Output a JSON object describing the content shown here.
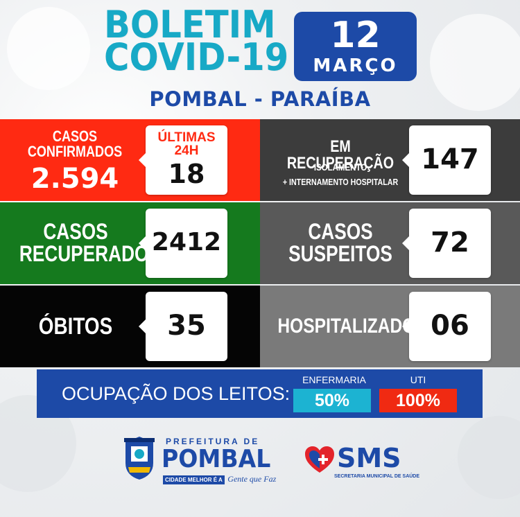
{
  "header": {
    "title_line1": "BOLETIM",
    "title_line2": "COVID-19",
    "day": "12",
    "month": "MARÇO",
    "location": "POMBAL - PARAÍBA"
  },
  "cards": {
    "confirmed": {
      "label_line1": "CASOS",
      "label_line2": "CONFIRMADOS",
      "value": "2.594",
      "last24_label1": "ÚLTIMAS",
      "last24_label2": "24H",
      "last24_value": "18"
    },
    "recovering": {
      "label": "EM RECUPERAÇÃO",
      "sub1": "ISOLAMENTO",
      "sub2": "+ INTERNAMENTO HOSPITALAR",
      "value": "147"
    },
    "recovered": {
      "label_line1": "CASOS",
      "label_line2": "RECUPERADOS",
      "value": "2412"
    },
    "suspected": {
      "label_line1": "CASOS",
      "label_line2": "SUSPEITOS",
      "value": "72"
    },
    "deaths": {
      "label": "ÓBITOS",
      "value": "35"
    },
    "hospitalized": {
      "label": "HOSPITALIZADOS",
      "value": "06"
    }
  },
  "beds": {
    "label": "OCUPAÇÃO DOS LEITOS:",
    "ward_label": "ENFERMARIA",
    "ward_value": "50%",
    "icu_label": "UTI",
    "icu_value": "100%"
  },
  "footer": {
    "pombal_top": "PREFEITURA DE",
    "pombal_name": "POMBAL",
    "pombal_slogan_a": "CIDADE MELHOR É A",
    "pombal_slogan_b": "Gente que Faz",
    "sms_name": "SMS",
    "sms_sub": "SECRETARIA MUNICIPAL DE SAÚDE"
  },
  "colors": {
    "teal": "#17a9c6",
    "navy": "#1d4aa7",
    "red": "#ff2a12",
    "green": "#157a1e",
    "black": "#050505",
    "gray_dark": "#3c3c3c",
    "gray_mid": "#595959",
    "gray_light": "#7a7a7a",
    "bed_ward": "#1cb3d2",
    "bed_icu": "#f02a12"
  }
}
